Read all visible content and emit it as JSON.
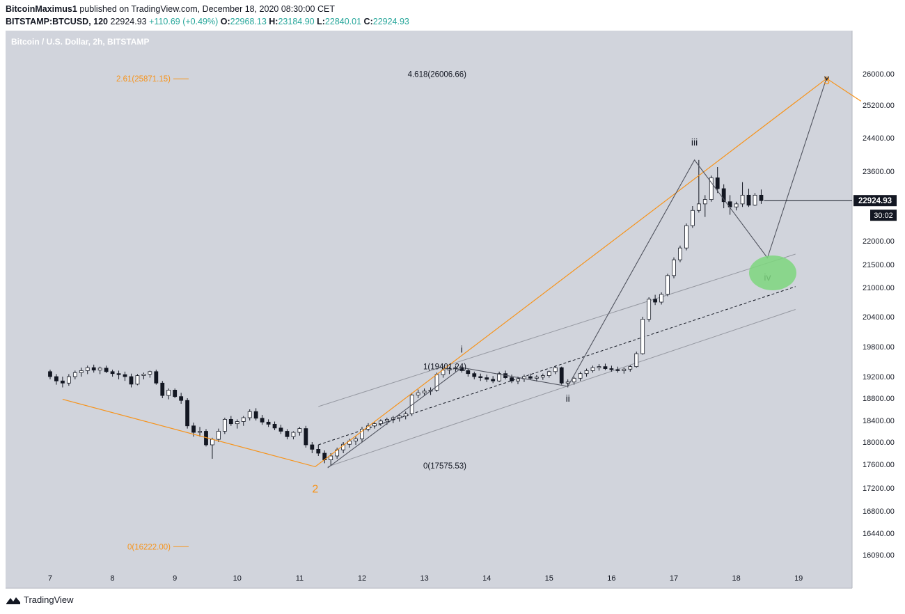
{
  "header": {
    "author": "BitcoinMaximus1",
    "published": "published on TradingView.com, December 18, 2020 08:30:00 CET",
    "symbol": "BITSTAMP:BTCUSD, 120",
    "last": "22924.93",
    "change": "+110.69 (+0.49%)",
    "o_label": "O:",
    "o_value": "22968.13",
    "h_label": "H:",
    "h_value": "23184.90",
    "l_label": "L:",
    "l_value": "22840.01",
    "c_label": "C:",
    "c_value": "22924.93"
  },
  "footer": {
    "brand": "TradingView",
    "logo_icon": "tradingview-logo-icon"
  },
  "colors": {
    "background": "#d1d4dc",
    "orange": "#f7931a",
    "up": "#26a69a",
    "candle_dark": "#131722"
  },
  "chart_data": {
    "type": "candlestick",
    "title": "Bitcoin / U.S. Dollar, 2h, BITSTAMP",
    "currency": "USD",
    "x_ticks": [
      "7",
      "8",
      "9",
      "10",
      "11",
      "12",
      "13",
      "14",
      "15",
      "16",
      "17",
      "18",
      "19"
    ],
    "y_ticks": [
      "26000.00",
      "25200.00",
      "24400.00",
      "23600.00",
      "22000.00",
      "21500.00",
      "21000.00",
      "20400.00",
      "19800.00",
      "19200.00",
      "18800.00",
      "18400.00",
      "18000.00",
      "17600.00",
      "17200.00",
      "16800.00",
      "16440.00",
      "16090.00"
    ],
    "last_price": "22924.93",
    "countdown": "30:02",
    "fib_labels": {
      "orange_top": "2.61(25871.15)",
      "orange_bottom": "0(16222.00)",
      "gray_top": "4.618(26006.66)",
      "gray_one": "1(19401.24)",
      "gray_zero": "0(17575.53)"
    },
    "wave_labels": {
      "w2": "2",
      "w3": "3",
      "wi": "i",
      "wii": "ii",
      "wiii": "iii",
      "wiv": "iv"
    },
    "orange_path": [
      [
        7.2,
        18780
      ],
      [
        11.25,
        17560
      ],
      [
        19.45,
        25880
      ],
      [
        20.0,
        25300
      ]
    ],
    "gray_path": [
      [
        11.45,
        17540
      ],
      [
        13.6,
        19380
      ],
      [
        15.3,
        19020
      ],
      [
        17.33,
        23870
      ],
      [
        18.5,
        21640
      ],
      [
        19.45,
        25900
      ]
    ],
    "channel_upper": [
      [
        11.3,
        18650
      ],
      [
        18.95,
        21720
      ]
    ],
    "channel_mid": [
      [
        11.3,
        17950
      ],
      [
        18.95,
        21020
      ]
    ],
    "channel_lower": [
      [
        11.45,
        17560
      ],
      [
        18.95,
        20550
      ]
    ],
    "ohlc": [
      [
        7.0,
        19300,
        19340,
        19150,
        19200
      ],
      [
        7.1,
        19200,
        19250,
        19050,
        19120
      ],
      [
        7.2,
        19120,
        19200,
        19000,
        19080
      ],
      [
        7.3,
        19080,
        19250,
        19030,
        19200
      ],
      [
        7.4,
        19200,
        19320,
        19150,
        19280
      ],
      [
        7.5,
        19280,
        19380,
        19200,
        19320
      ],
      [
        7.6,
        19320,
        19420,
        19250,
        19380
      ],
      [
        7.7,
        19380,
        19440,
        19280,
        19330
      ],
      [
        7.8,
        19330,
        19400,
        19250,
        19370
      ],
      [
        7.9,
        19370,
        19420,
        19270,
        19300
      ],
      [
        8.0,
        19300,
        19340,
        19200,
        19260
      ],
      [
        8.1,
        19260,
        19320,
        19150,
        19240
      ],
      [
        8.2,
        19240,
        19300,
        19120,
        19200
      ],
      [
        8.3,
        19200,
        19260,
        19000,
        19060
      ],
      [
        8.4,
        19060,
        19250,
        19040,
        19220
      ],
      [
        8.5,
        19220,
        19280,
        19150,
        19250
      ],
      [
        8.6,
        19250,
        19320,
        19180,
        19300
      ],
      [
        8.7,
        19300,
        19340,
        19050,
        19080
      ],
      [
        8.8,
        19080,
        19120,
        18800,
        18850
      ],
      [
        8.9,
        18850,
        18980,
        18780,
        18950
      ],
      [
        9.0,
        18950,
        18980,
        18800,
        18830
      ],
      [
        9.1,
        18830,
        18900,
        18700,
        18760
      ],
      [
        9.2,
        18760,
        18800,
        18250,
        18300
      ],
      [
        9.3,
        18300,
        18360,
        18100,
        18180
      ],
      [
        9.4,
        18180,
        18280,
        18100,
        18200
      ],
      [
        9.5,
        18200,
        18240,
        17920,
        17950
      ],
      [
        9.6,
        17950,
        18080,
        17700,
        18050
      ],
      [
        9.7,
        18050,
        18250,
        18000,
        18200
      ],
      [
        9.8,
        18200,
        18450,
        18150,
        18420
      ],
      [
        9.9,
        18420,
        18480,
        18300,
        18340
      ],
      [
        10.0,
        18340,
        18420,
        18250,
        18380
      ],
      [
        10.1,
        18380,
        18480,
        18300,
        18450
      ],
      [
        10.2,
        18450,
        18600,
        18400,
        18560
      ],
      [
        10.3,
        18560,
        18620,
        18400,
        18440
      ],
      [
        10.4,
        18440,
        18500,
        18320,
        18370
      ],
      [
        10.5,
        18370,
        18420,
        18280,
        18330
      ],
      [
        10.6,
        18330,
        18380,
        18220,
        18260
      ],
      [
        10.7,
        18260,
        18320,
        18150,
        18200
      ],
      [
        10.8,
        18200,
        18240,
        18050,
        18100
      ],
      [
        10.9,
        18100,
        18200,
        18050,
        18180
      ],
      [
        11.0,
        18180,
        18280,
        18120,
        18250
      ],
      [
        11.1,
        18250,
        18300,
        17900,
        17950
      ],
      [
        11.2,
        17950,
        18000,
        17800,
        17870
      ],
      [
        11.3,
        17870,
        17950,
        17750,
        17800
      ],
      [
        11.4,
        17800,
        17850,
        17620,
        17680
      ],
      [
        11.5,
        17680,
        17800,
        17580,
        17750
      ],
      [
        11.6,
        17750,
        17900,
        17700,
        17860
      ],
      [
        11.7,
        17860,
        18000,
        17800,
        17960
      ],
      [
        11.8,
        17960,
        18060,
        17900,
        18020
      ],
      [
        11.9,
        18020,
        18100,
        17950,
        18060
      ],
      [
        12.0,
        18060,
        18280,
        18000,
        18240
      ],
      [
        12.1,
        18240,
        18350,
        18200,
        18300
      ],
      [
        12.2,
        18300,
        18380,
        18250,
        18340
      ],
      [
        12.3,
        18340,
        18420,
        18300,
        18390
      ],
      [
        12.4,
        18390,
        18450,
        18320,
        18420
      ],
      [
        12.5,
        18420,
        18480,
        18350,
        18450
      ],
      [
        12.6,
        18450,
        18520,
        18380,
        18480
      ],
      [
        12.7,
        18480,
        18560,
        18420,
        18520
      ],
      [
        12.8,
        18520,
        18900,
        18480,
        18860
      ],
      [
        12.9,
        18860,
        18960,
        18800,
        18900
      ],
      [
        13.0,
        18900,
        18980,
        18850,
        18930
      ],
      [
        13.1,
        18930,
        19000,
        18860,
        18950
      ],
      [
        13.2,
        18950,
        19280,
        18920,
        19240
      ],
      [
        13.3,
        19240,
        19380,
        19180,
        19330
      ],
      [
        13.4,
        19330,
        19400,
        19250,
        19360
      ],
      [
        13.5,
        19360,
        19420,
        19300,
        19380
      ],
      [
        13.6,
        19380,
        19410,
        19280,
        19320
      ],
      [
        13.7,
        19320,
        19360,
        19200,
        19260
      ],
      [
        13.8,
        19260,
        19300,
        19150,
        19200
      ],
      [
        13.9,
        19200,
        19260,
        19120,
        19180
      ],
      [
        14.0,
        19180,
        19240,
        19100,
        19150
      ],
      [
        14.1,
        19150,
        19210,
        19080,
        19120
      ],
      [
        14.2,
        19120,
        19300,
        19100,
        19260
      ],
      [
        14.3,
        19260,
        19320,
        19150,
        19180
      ],
      [
        14.4,
        19180,
        19240,
        19080,
        19120
      ],
      [
        14.5,
        19120,
        19200,
        19060,
        19160
      ],
      [
        14.6,
        19160,
        19240,
        19100,
        19200
      ],
      [
        14.7,
        19200,
        19260,
        19140,
        19170
      ],
      [
        14.8,
        19170,
        19230,
        19110,
        19190
      ],
      [
        14.9,
        19190,
        19260,
        19140,
        19220
      ],
      [
        15.0,
        19220,
        19320,
        19180,
        19300
      ],
      [
        15.1,
        19300,
        19420,
        19250,
        19380
      ],
      [
        15.2,
        19380,
        19400,
        19050,
        19080
      ],
      [
        15.3,
        19080,
        19150,
        19000,
        19100
      ],
      [
        15.4,
        19100,
        19200,
        19050,
        19170
      ],
      [
        15.5,
        19170,
        19300,
        19120,
        19260
      ],
      [
        15.6,
        19260,
        19360,
        19200,
        19320
      ],
      [
        15.7,
        19320,
        19420,
        19280,
        19380
      ],
      [
        15.8,
        19380,
        19450,
        19320,
        19400
      ],
      [
        15.9,
        19400,
        19460,
        19330,
        19360
      ],
      [
        16.0,
        19360,
        19420,
        19300,
        19340
      ],
      [
        16.1,
        19340,
        19400,
        19280,
        19320
      ],
      [
        16.2,
        19320,
        19380,
        19260,
        19350
      ],
      [
        16.3,
        19350,
        19430,
        19300,
        19400
      ],
      [
        16.4,
        19400,
        19700,
        19380,
        19660
      ],
      [
        16.5,
        19660,
        20400,
        19640,
        20350
      ],
      [
        16.6,
        20350,
        20800,
        20300,
        20760
      ],
      [
        16.7,
        20760,
        20850,
        20640,
        20700
      ],
      [
        16.8,
        20700,
        20900,
        20650,
        20860
      ],
      [
        16.9,
        20860,
        21300,
        20820,
        21260
      ],
      [
        17.0,
        21260,
        21650,
        21200,
        21600
      ],
      [
        17.1,
        21600,
        21900,
        21550,
        21850
      ],
      [
        17.2,
        21850,
        22400,
        21800,
        22350
      ],
      [
        17.3,
        22350,
        22800,
        22300,
        22700
      ],
      [
        17.4,
        22700,
        23870,
        22650,
        22850
      ],
      [
        17.5,
        22850,
        23050,
        22550,
        22950
      ],
      [
        17.6,
        22950,
        23500,
        22900,
        23450
      ],
      [
        17.7,
        23450,
        23700,
        23100,
        23200
      ],
      [
        17.8,
        23200,
        23300,
        22750,
        22900
      ],
      [
        17.9,
        22900,
        23050,
        22600,
        22780
      ],
      [
        18.0,
        22780,
        22900,
        22700,
        22850
      ],
      [
        18.1,
        22850,
        23350,
        22780,
        23050
      ],
      [
        18.2,
        23050,
        23200,
        22780,
        22820
      ],
      [
        18.3,
        22820,
        23100,
        22800,
        23050
      ],
      [
        18.4,
        23050,
        23180,
        22850,
        22925
      ]
    ]
  }
}
